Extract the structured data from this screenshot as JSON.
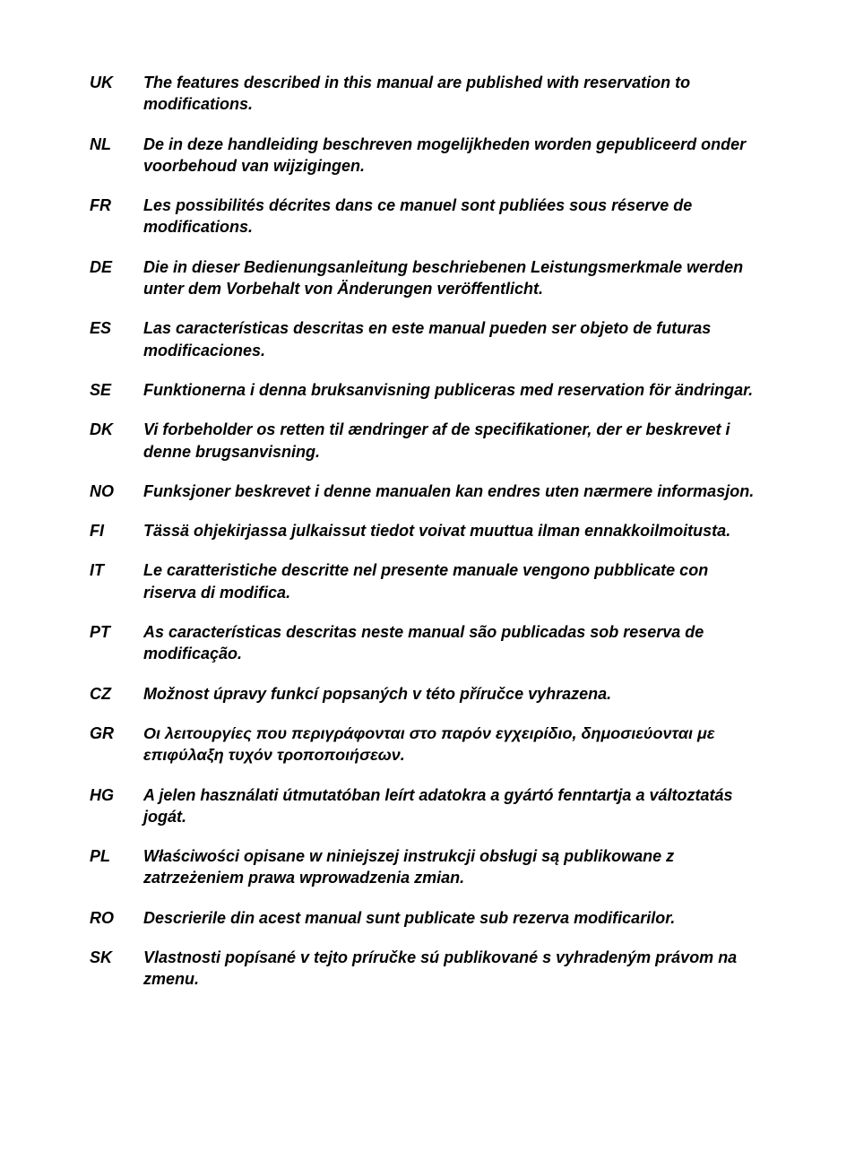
{
  "entries": [
    {
      "code": "UK",
      "text": "The features described in this manual are published with reservation to modifications."
    },
    {
      "code": "NL",
      "text": "De in deze handleiding beschreven mogelijkheden worden gepubliceerd onder voorbehoud van wijzigingen."
    },
    {
      "code": "FR",
      "text": "Les possibilités décrites dans ce manuel sont publiées sous réserve de modifications."
    },
    {
      "code": "DE",
      "text": "Die in dieser Bedienungsanleitung beschriebenen Leistungsmerkmale werden unter dem Vorbehalt von Änderungen veröffentlicht."
    },
    {
      "code": "ES",
      "text": "Las características descritas en este manual pueden ser objeto de futuras modificaciones."
    },
    {
      "code": "SE",
      "text": "Funktionerna i denna bruksanvisning publiceras med reservation för ändringar."
    },
    {
      "code": "DK",
      "text": "Vi forbeholder os retten til ændringer af de specifikationer, der er beskrevet i denne brugsanvisning."
    },
    {
      "code": "NO",
      "text": "Funksjoner beskrevet i denne manualen kan endres uten nærmere informasjon."
    },
    {
      "code": "FI",
      "text": "Tässä ohjekirjassa julkaissut tiedot voivat muuttua ilman ennakkoilmoitusta."
    },
    {
      "code": "IT",
      "text": "Le caratteristiche descritte nel presente manuale vengono pubblicate con riserva di modifica."
    },
    {
      "code": "PT",
      "text": "As características descritas neste manual são publicadas sob reserva de modificação."
    },
    {
      "code": "CZ",
      "text": "Možnost úpravy funkcí popsaných v této příručce vyhrazena."
    },
    {
      "code": "GR",
      "text": "Οι λειτουργίες που περιγράφονται στο παρόν εγχειρίδιο, δημοσιεύονται με επιφύλαξη τυχόν τροποποιήσεων."
    },
    {
      "code": "HG",
      "text": "A jelen használati útmutatóban leírt adatokra a gyártó fenntartja a változtatás jogát."
    },
    {
      "code": "PL",
      "text": "Właściwości opisane w niniejszej instrukcji obsługi są publikowane z zatrzeżeniem prawa wprowadzenia zmian."
    },
    {
      "code": "RO",
      "text": "Descrierile din acest manual sunt publicate sub rezerva modificarilor."
    },
    {
      "code": "SK",
      "text": "Vlastnosti popísané v tejto príručke sú publikované s vyhradeným právom na zmenu."
    }
  ]
}
